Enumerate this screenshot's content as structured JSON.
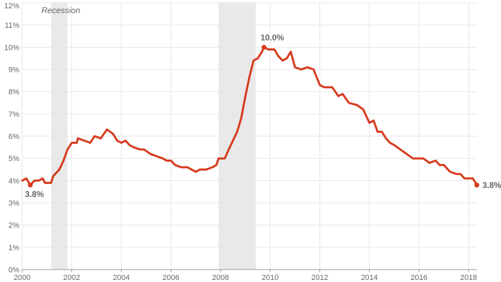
{
  "chart_data": {
    "type": "line",
    "title": "",
    "xlabel": "",
    "ylabel": "",
    "x_unit": "year",
    "xlim": [
      2000,
      2018.33
    ],
    "ylim": [
      0,
      12
    ],
    "grid": true,
    "x_ticks": [
      "2000",
      "2002",
      "2004",
      "2006",
      "2008",
      "2010",
      "2012",
      "2014",
      "2016",
      "2018"
    ],
    "y_ticks": [
      "0%",
      "1%",
      "2%",
      "3%",
      "4%",
      "5%",
      "6%",
      "7%",
      "8%",
      "9%",
      "10%",
      "11%",
      "12%"
    ],
    "recession_label": "Recession",
    "recessions": [
      [
        2001.17,
        2001.83
      ],
      [
        2007.92,
        2009.42
      ]
    ],
    "line_color": "#d63b1f",
    "band_color": "#e9e9e9",
    "series": [
      {
        "values": [
          [
            2000.0,
            4.0
          ],
          [
            2000.17,
            4.1
          ],
          [
            2000.33,
            3.8
          ],
          [
            2000.5,
            4.0
          ],
          [
            2000.67,
            4.0
          ],
          [
            2000.83,
            4.1
          ],
          [
            2000.92,
            3.9
          ],
          [
            2001.17,
            3.9
          ],
          [
            2001.25,
            4.2
          ],
          [
            2001.5,
            4.5
          ],
          [
            2001.67,
            4.9
          ],
          [
            2001.83,
            5.4
          ],
          [
            2002.0,
            5.7
          ],
          [
            2002.2,
            5.7
          ],
          [
            2002.25,
            5.9
          ],
          [
            2002.5,
            5.8
          ],
          [
            2002.75,
            5.7
          ],
          [
            2002.92,
            6.0
          ],
          [
            2003.17,
            5.9
          ],
          [
            2003.42,
            6.3
          ],
          [
            2003.67,
            6.1
          ],
          [
            2003.83,
            5.8
          ],
          [
            2004.0,
            5.7
          ],
          [
            2004.17,
            5.8
          ],
          [
            2004.33,
            5.6
          ],
          [
            2004.5,
            5.5
          ],
          [
            2004.75,
            5.4
          ],
          [
            2004.92,
            5.4
          ],
          [
            2005.17,
            5.2
          ],
          [
            2005.42,
            5.1
          ],
          [
            2005.67,
            5.0
          ],
          [
            2005.83,
            4.9
          ],
          [
            2006.0,
            4.9
          ],
          [
            2006.17,
            4.7
          ],
          [
            2006.42,
            4.6
          ],
          [
            2006.67,
            4.6
          ],
          [
            2006.83,
            4.5
          ],
          [
            2007.0,
            4.4
          ],
          [
            2007.17,
            4.5
          ],
          [
            2007.42,
            4.5
          ],
          [
            2007.67,
            4.6
          ],
          [
            2007.83,
            4.7
          ],
          [
            2007.92,
            5.0
          ],
          [
            2008.17,
            5.0
          ],
          [
            2008.33,
            5.4
          ],
          [
            2008.5,
            5.8
          ],
          [
            2008.67,
            6.2
          ],
          [
            2008.83,
            6.8
          ],
          [
            2009.0,
            7.8
          ],
          [
            2009.17,
            8.7
          ],
          [
            2009.33,
            9.4
          ],
          [
            2009.5,
            9.5
          ],
          [
            2009.67,
            9.8
          ],
          [
            2009.75,
            10.0
          ],
          [
            2009.92,
            9.9
          ],
          [
            2010.17,
            9.9
          ],
          [
            2010.33,
            9.6
          ],
          [
            2010.5,
            9.4
          ],
          [
            2010.67,
            9.5
          ],
          [
            2010.83,
            9.8
          ],
          [
            2011.0,
            9.1
          ],
          [
            2011.25,
            9.0
          ],
          [
            2011.5,
            9.1
          ],
          [
            2011.75,
            9.0
          ],
          [
            2012.0,
            8.3
          ],
          [
            2012.17,
            8.2
          ],
          [
            2012.5,
            8.2
          ],
          [
            2012.75,
            7.8
          ],
          [
            2012.92,
            7.9
          ],
          [
            2013.17,
            7.5
          ],
          [
            2013.5,
            7.4
          ],
          [
            2013.75,
            7.2
          ],
          [
            2014.0,
            6.6
          ],
          [
            2014.17,
            6.7
          ],
          [
            2014.33,
            6.2
          ],
          [
            2014.5,
            6.2
          ],
          [
            2014.67,
            5.9
          ],
          [
            2014.83,
            5.7
          ],
          [
            2015.0,
            5.6
          ],
          [
            2015.25,
            5.4
          ],
          [
            2015.5,
            5.2
          ],
          [
            2015.75,
            5.0
          ],
          [
            2016.0,
            5.0
          ],
          [
            2016.17,
            5.0
          ],
          [
            2016.42,
            4.8
          ],
          [
            2016.67,
            4.9
          ],
          [
            2016.83,
            4.7
          ],
          [
            2017.0,
            4.7
          ],
          [
            2017.25,
            4.4
          ],
          [
            2017.5,
            4.3
          ],
          [
            2017.67,
            4.3
          ],
          [
            2017.83,
            4.1
          ],
          [
            2018.0,
            4.1
          ],
          [
            2018.17,
            4.1
          ],
          [
            2018.33,
            3.8
          ]
        ]
      }
    ],
    "annotations": [
      {
        "x": 2000.33,
        "y": 3.8,
        "label": "3.8%",
        "placement": "below"
      },
      {
        "x": 2009.75,
        "y": 10.0,
        "label": "10.0%",
        "placement": "above"
      },
      {
        "x": 2018.33,
        "y": 3.8,
        "label": "3.8%",
        "placement": "right"
      }
    ]
  }
}
